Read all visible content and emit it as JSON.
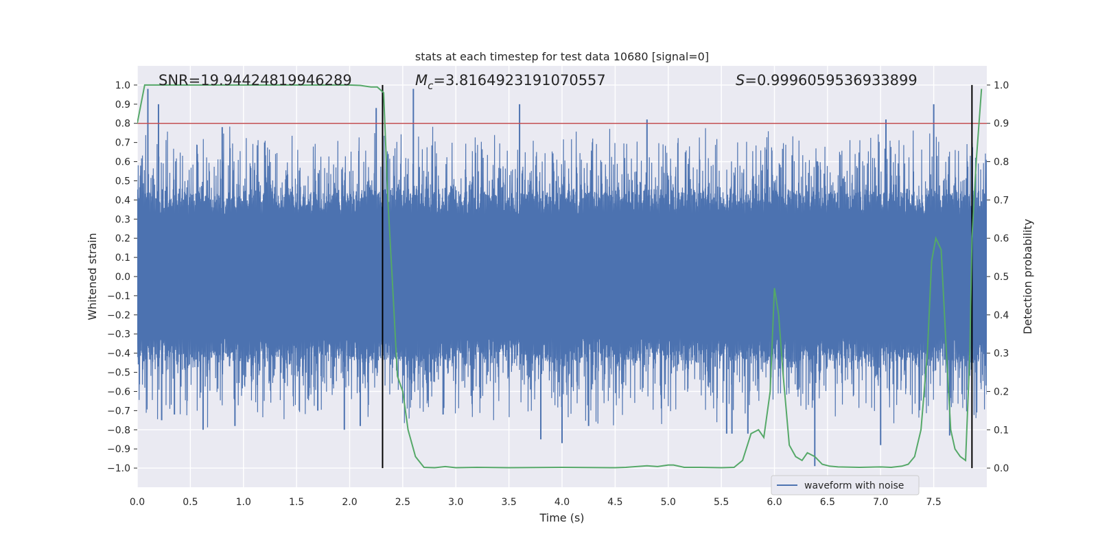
{
  "chart_data": {
    "type": "line",
    "title": "stats at each timestep for test data 10680 [signal=0]",
    "xlabel": "Time (s)",
    "ylabel": "Whitened strain",
    "ylabel_right": "Detection probability",
    "xlim": [
      0.0,
      8.0
    ],
    "ylim": [
      -1.1,
      1.1
    ],
    "ylim_right": [
      -0.05,
      1.05
    ],
    "x_ticks": [
      "0.0",
      "0.5",
      "1.0",
      "1.5",
      "2.0",
      "2.5",
      "3.0",
      "3.5",
      "4.0",
      "4.5",
      "5.0",
      "5.5",
      "6.0",
      "6.5",
      "7.0",
      "7.5"
    ],
    "y_ticks": [
      "1.0",
      "0.9",
      "0.8",
      "0.7",
      "0.6",
      "0.5",
      "0.4",
      "0.3",
      "0.2",
      "0.1",
      "0.0",
      "−0.1",
      "−0.2",
      "−0.3",
      "−0.4",
      "−0.5",
      "−0.6",
      "−0.7",
      "−0.8",
      "−0.9",
      "−1.0"
    ],
    "y_ticks_right": [
      "1.0",
      "0.9",
      "0.8",
      "0.7",
      "0.6",
      "0.5",
      "0.4",
      "0.3",
      "0.2",
      "0.1",
      "0.0"
    ],
    "annotations": {
      "snr": "SNR=19.94424819946289",
      "mc_symbol": "M",
      "mc_sub": "c",
      "mc_value": "=3.8164923191070557",
      "s_symbol": "S",
      "s_value": "=0.9996059536933899"
    },
    "threshold": {
      "value": 0.9,
      "axis": "right",
      "color": "#c44e52"
    },
    "vertical_lines": [
      2.31,
      7.86
    ],
    "legend": {
      "label": "waveform with noise",
      "position": "lower-right"
    },
    "series": [
      {
        "name": "waveform with noise",
        "axis": "left",
        "color": "#4c72b0",
        "description": "dense whitened strain noise, sampled 0-8 s",
        "spikes": [
          [
            0.1,
            0.98
          ],
          [
            0.2,
            0.9
          ],
          [
            0.23,
            -0.75
          ],
          [
            0.35,
            -0.72
          ],
          [
            0.62,
            -0.8
          ],
          [
            0.8,
            0.78
          ],
          [
            0.92,
            -0.78
          ],
          [
            1.2,
            0.7
          ],
          [
            1.7,
            -0.7
          ],
          [
            1.95,
            -0.8
          ],
          [
            2.1,
            -0.78
          ],
          [
            2.25,
            0.88
          ],
          [
            2.6,
            0.98
          ],
          [
            2.88,
            -0.72
          ],
          [
            3.6,
            0.9
          ],
          [
            3.8,
            -0.85
          ],
          [
            4.0,
            -0.87
          ],
          [
            4.25,
            -0.78
          ],
          [
            4.8,
            0.82
          ],
          [
            5.55,
            -0.82
          ],
          [
            5.6,
            -0.82
          ],
          [
            5.75,
            -0.82
          ],
          [
            6.05,
            -0.48
          ],
          [
            6.38,
            -0.99
          ],
          [
            7.0,
            -0.88
          ],
          [
            7.05,
            0.82
          ],
          [
            7.5,
            0.9
          ],
          [
            7.65,
            -0.83
          ]
        ]
      },
      {
        "name": "detection probability",
        "axis": "right",
        "color": "#55a868",
        "x": [
          0.0,
          0.07,
          0.15,
          0.25,
          0.5,
          1.0,
          1.5,
          1.9,
          2.0,
          2.1,
          2.2,
          2.26,
          2.32,
          2.36,
          2.4,
          2.45,
          2.5,
          2.55,
          2.62,
          2.7,
          2.8,
          2.9,
          3.0,
          3.2,
          3.5,
          4.0,
          4.5,
          4.6,
          4.8,
          4.9,
          5.0,
          5.05,
          5.15,
          5.3,
          5.5,
          5.62,
          5.7,
          5.78,
          5.85,
          5.9,
          5.96,
          6.0,
          6.04,
          6.08,
          6.14,
          6.2,
          6.26,
          6.31,
          6.38,
          6.45,
          6.52,
          6.6,
          6.8,
          7.0,
          7.1,
          7.2,
          7.26,
          7.32,
          7.38,
          7.44,
          7.48,
          7.52,
          7.57,
          7.62,
          7.66,
          7.7,
          7.75,
          7.8,
          7.84,
          7.86,
          7.9,
          7.95
        ],
        "y": [
          0.9,
          1.0,
          1.0,
          1.0,
          1.0,
          1.0,
          1.0,
          1.0,
          1.0,
          0.999,
          0.995,
          0.995,
          0.98,
          0.7,
          0.5,
          0.24,
          0.2,
          0.1,
          0.03,
          0.002,
          0.001,
          0.004,
          0.001,
          0.002,
          0.001,
          0.002,
          0.001,
          0.002,
          0.006,
          0.004,
          0.008,
          0.008,
          0.002,
          0.002,
          0.001,
          0.002,
          0.02,
          0.09,
          0.1,
          0.08,
          0.2,
          0.47,
          0.4,
          0.25,
          0.06,
          0.03,
          0.02,
          0.04,
          0.03,
          0.01,
          0.005,
          0.003,
          0.002,
          0.003,
          0.002,
          0.005,
          0.01,
          0.03,
          0.1,
          0.3,
          0.54,
          0.6,
          0.57,
          0.3,
          0.1,
          0.05,
          0.03,
          0.02,
          0.3,
          0.6,
          0.8,
          0.99
        ]
      }
    ]
  }
}
